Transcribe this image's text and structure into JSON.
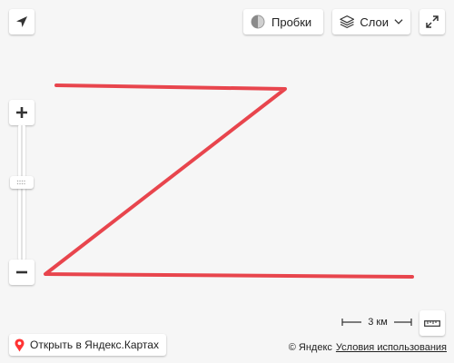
{
  "map": {
    "background_color": "#f6f6f6",
    "route_color": "#e8454d"
  },
  "toolbar": {
    "geolocation_icon": "arrow-location-icon",
    "traffic_label": "Пробки",
    "traffic_icon": "traffic-light-icon",
    "layers_label": "Слои",
    "layers_icon": "layers-icon",
    "fullscreen_icon": "expand-icon"
  },
  "zoom": {
    "plus_icon": "plus-icon",
    "minus_icon": "minus-icon"
  },
  "scale": {
    "label": "3 км",
    "ruler_icon": "ruler-icon"
  },
  "footer": {
    "open_label": "Открыть в Яндекс.Картах",
    "copyright": "© Яндекс",
    "terms": "Условия использования"
  }
}
